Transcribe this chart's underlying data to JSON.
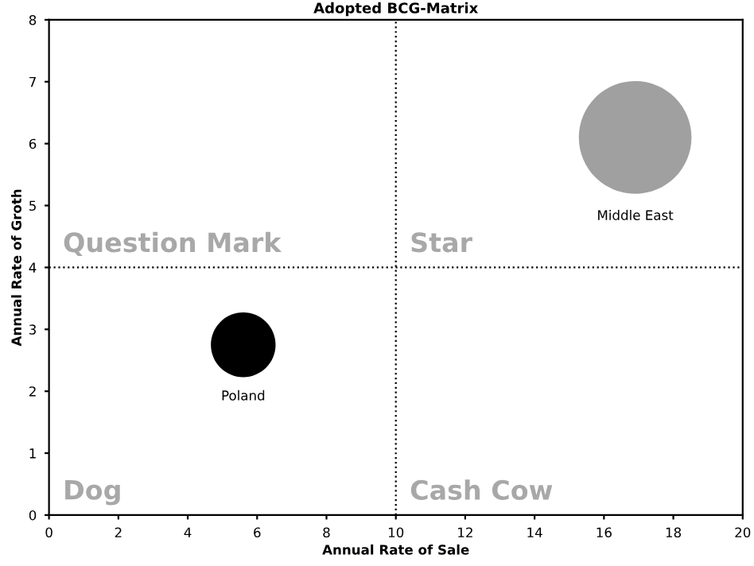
{
  "chart_data": {
    "type": "bubble",
    "title": "Adopted BCG-Matrix",
    "xlabel": "Annual Rate of Sale",
    "ylabel": "Annual Rate of Groth",
    "series": [
      {
        "name": "Middle East",
        "color": "#a0a0a0",
        "x": [
          16.9
        ],
        "values": [
          6.1
        ],
        "sizes": [
          1
        ]
      },
      {
        "name": "Poland",
        "color": "#000000",
        "x": [
          5.6
        ],
        "values": [
          2.75
        ],
        "sizes": [
          0.33
        ]
      }
    ],
    "xlim": [
      0,
      20
    ],
    "xticks": [
      0,
      2,
      4,
      6,
      8,
      10,
      12,
      14,
      16,
      18,
      20
    ],
    "ylim": [
      0,
      8
    ],
    "yticks": [
      0,
      1,
      2,
      3,
      4,
      5,
      6,
      7,
      8
    ],
    "ref_lines": [
      {
        "axis": "x",
        "value": 10,
        "color": "#000000",
        "line_style": "dotted"
      },
      {
        "axis": "y",
        "value": 4,
        "color": "#000000",
        "line_style": "dotted"
      }
    ],
    "annotations": [
      "Question Mark",
      "Star",
      "Dog",
      "Cash Cow"
    ],
    "grid": false,
    "legend": false
  }
}
